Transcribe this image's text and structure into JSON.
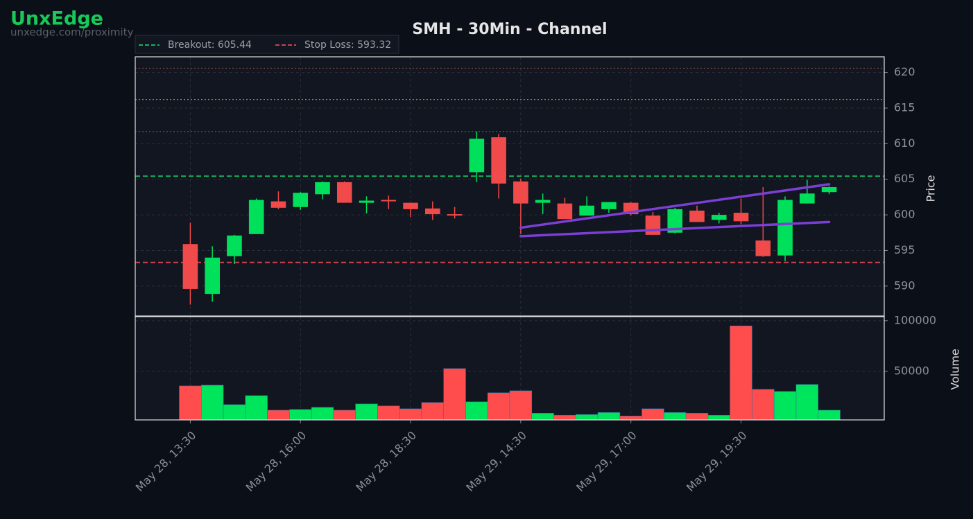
{
  "watermark": {
    "brand": "UnxEdge",
    "url": "unxedge.com/proximity"
  },
  "chart_data": {
    "type": "candlestick",
    "title": "SMH - 30Min - Channel",
    "y_label": "Price",
    "up_color": "#00e05a",
    "down_color": "#f04a4a",
    "xlim": [
      -2.5,
      31.5
    ],
    "xticks": [
      {
        "value": 0,
        "label": "May 28, 13:30"
      },
      {
        "value": 5,
        "label": "May 28, 16:00"
      },
      {
        "value": 10,
        "label": "May 28, 18:30"
      },
      {
        "value": 15,
        "label": "May 29, 14:30"
      },
      {
        "value": 20,
        "label": "May 29, 17:00"
      },
      {
        "value": 25,
        "label": "May 29, 19:30"
      }
    ],
    "ylim": [
      585.8,
      622.2
    ],
    "yticks": [
      590,
      595,
      600,
      605,
      610,
      615,
      620
    ],
    "grid": true,
    "open": [
      595.9,
      588.9,
      594.2,
      597.3,
      601.9,
      601.1,
      602.9,
      604.6,
      601.7,
      602.1,
      601.7,
      600.9,
      600.1,
      606.0,
      610.9,
      604.7,
      601.7,
      601.6,
      599.9,
      600.8,
      601.7,
      599.9,
      597.5,
      600.6,
      599.3,
      600.3,
      596.4,
      594.3,
      601.6,
      603.2
    ],
    "high": [
      598.9,
      595.6,
      597.2,
      602.3,
      603.3,
      603.2,
      604.7,
      604.7,
      602.6,
      602.7,
      601.7,
      601.9,
      601.1,
      611.7,
      611.4,
      605.1,
      603.0,
      602.4,
      602.6,
      601.8,
      601.8,
      600.4,
      601.0,
      601.3,
      600.3,
      602.3,
      603.9,
      602.6,
      604.9,
      604.0
    ],
    "low": [
      587.4,
      587.8,
      593.1,
      597.3,
      600.8,
      600.7,
      602.2,
      601.7,
      600.2,
      600.8,
      599.7,
      599.3,
      599.5,
      604.6,
      602.3,
      597.3,
      600.1,
      599.4,
      599.9,
      600.3,
      599.9,
      597.2,
      597.4,
      599.0,
      598.8,
      598.7,
      594.1,
      593.5,
      601.6,
      602.9
    ],
    "close": [
      589.6,
      594.0,
      597.1,
      602.1,
      601.0,
      603.1,
      604.6,
      601.7,
      602.0,
      601.9,
      600.8,
      600.1,
      599.9,
      610.7,
      604.4,
      601.6,
      602.1,
      599.4,
      601.3,
      601.8,
      600.1,
      597.2,
      600.8,
      599.0,
      600.0,
      599.1,
      594.2,
      602.1,
      603.0,
      603.9
    ],
    "levels": [
      {
        "label": "Breakout: 605.44",
        "value": 605.44,
        "color": "#19b35a",
        "style": "dashed"
      },
      {
        "label": "Stop Loss: 593.32",
        "value": 593.32,
        "color": "#d0404f",
        "style": "dashed"
      },
      {
        "value": 620.6,
        "color": "#8a4a3a",
        "style": "dotted"
      },
      {
        "value": 616.2,
        "color": "#9a8a2a",
        "style": "dotted"
      },
      {
        "value": 611.7,
        "color": "#1f7a4a",
        "style": "dotted"
      }
    ],
    "channel": [
      {
        "x": [
          15,
          29
        ],
        "y": [
          598.2,
          604.3
        ],
        "color": "#7b3fd4"
      },
      {
        "x": [
          15,
          29
        ],
        "y": [
          597.0,
          599.0
        ],
        "color": "#7b3fd4"
      }
    ],
    "volume": {
      "label": "Volume",
      "ylim": [
        2000,
        104000
      ],
      "yticks": [
        50000,
        100000
      ],
      "up_color": "#00e65c",
      "down_color": "#ff4d4d",
      "values": [
        35600,
        36300,
        17100,
        26000,
        11600,
        12300,
        14400,
        11600,
        17800,
        15800,
        13000,
        19200,
        52700,
        19900,
        28800,
        30800,
        8600,
        6600,
        7300,
        9300,
        5900,
        13000,
        9300,
        8600,
        6600,
        94900,
        32200,
        30100,
        37000,
        11600
      ]
    }
  }
}
